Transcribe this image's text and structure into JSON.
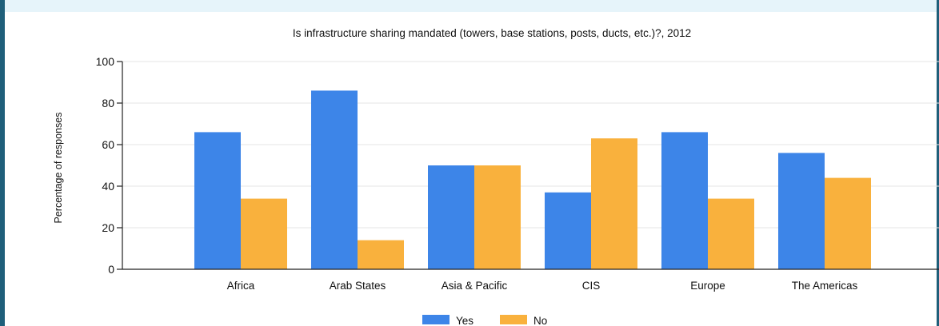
{
  "chart_data": {
    "type": "bar",
    "title": "Is infrastructure sharing mandated (towers, base stations, posts, ducts, etc.)?, 2012",
    "xlabel": "",
    "ylabel": "Percentage of responses",
    "ylim": [
      0,
      100
    ],
    "yticks": [
      0,
      20,
      40,
      60,
      80,
      100
    ],
    "categories": [
      "Africa",
      "Arab States",
      "Asia & Pacific",
      "CIS",
      "Europe",
      "The Americas"
    ],
    "series": [
      {
        "name": "Yes",
        "color": "#3d85e8",
        "values": [
          66,
          86,
          50,
          37,
          66,
          56
        ]
      },
      {
        "name": "No",
        "color": "#f9b13d",
        "values": [
          34,
          14,
          50,
          63,
          34,
          44
        ]
      }
    ],
    "grid": true,
    "legend_position": "bottom"
  }
}
